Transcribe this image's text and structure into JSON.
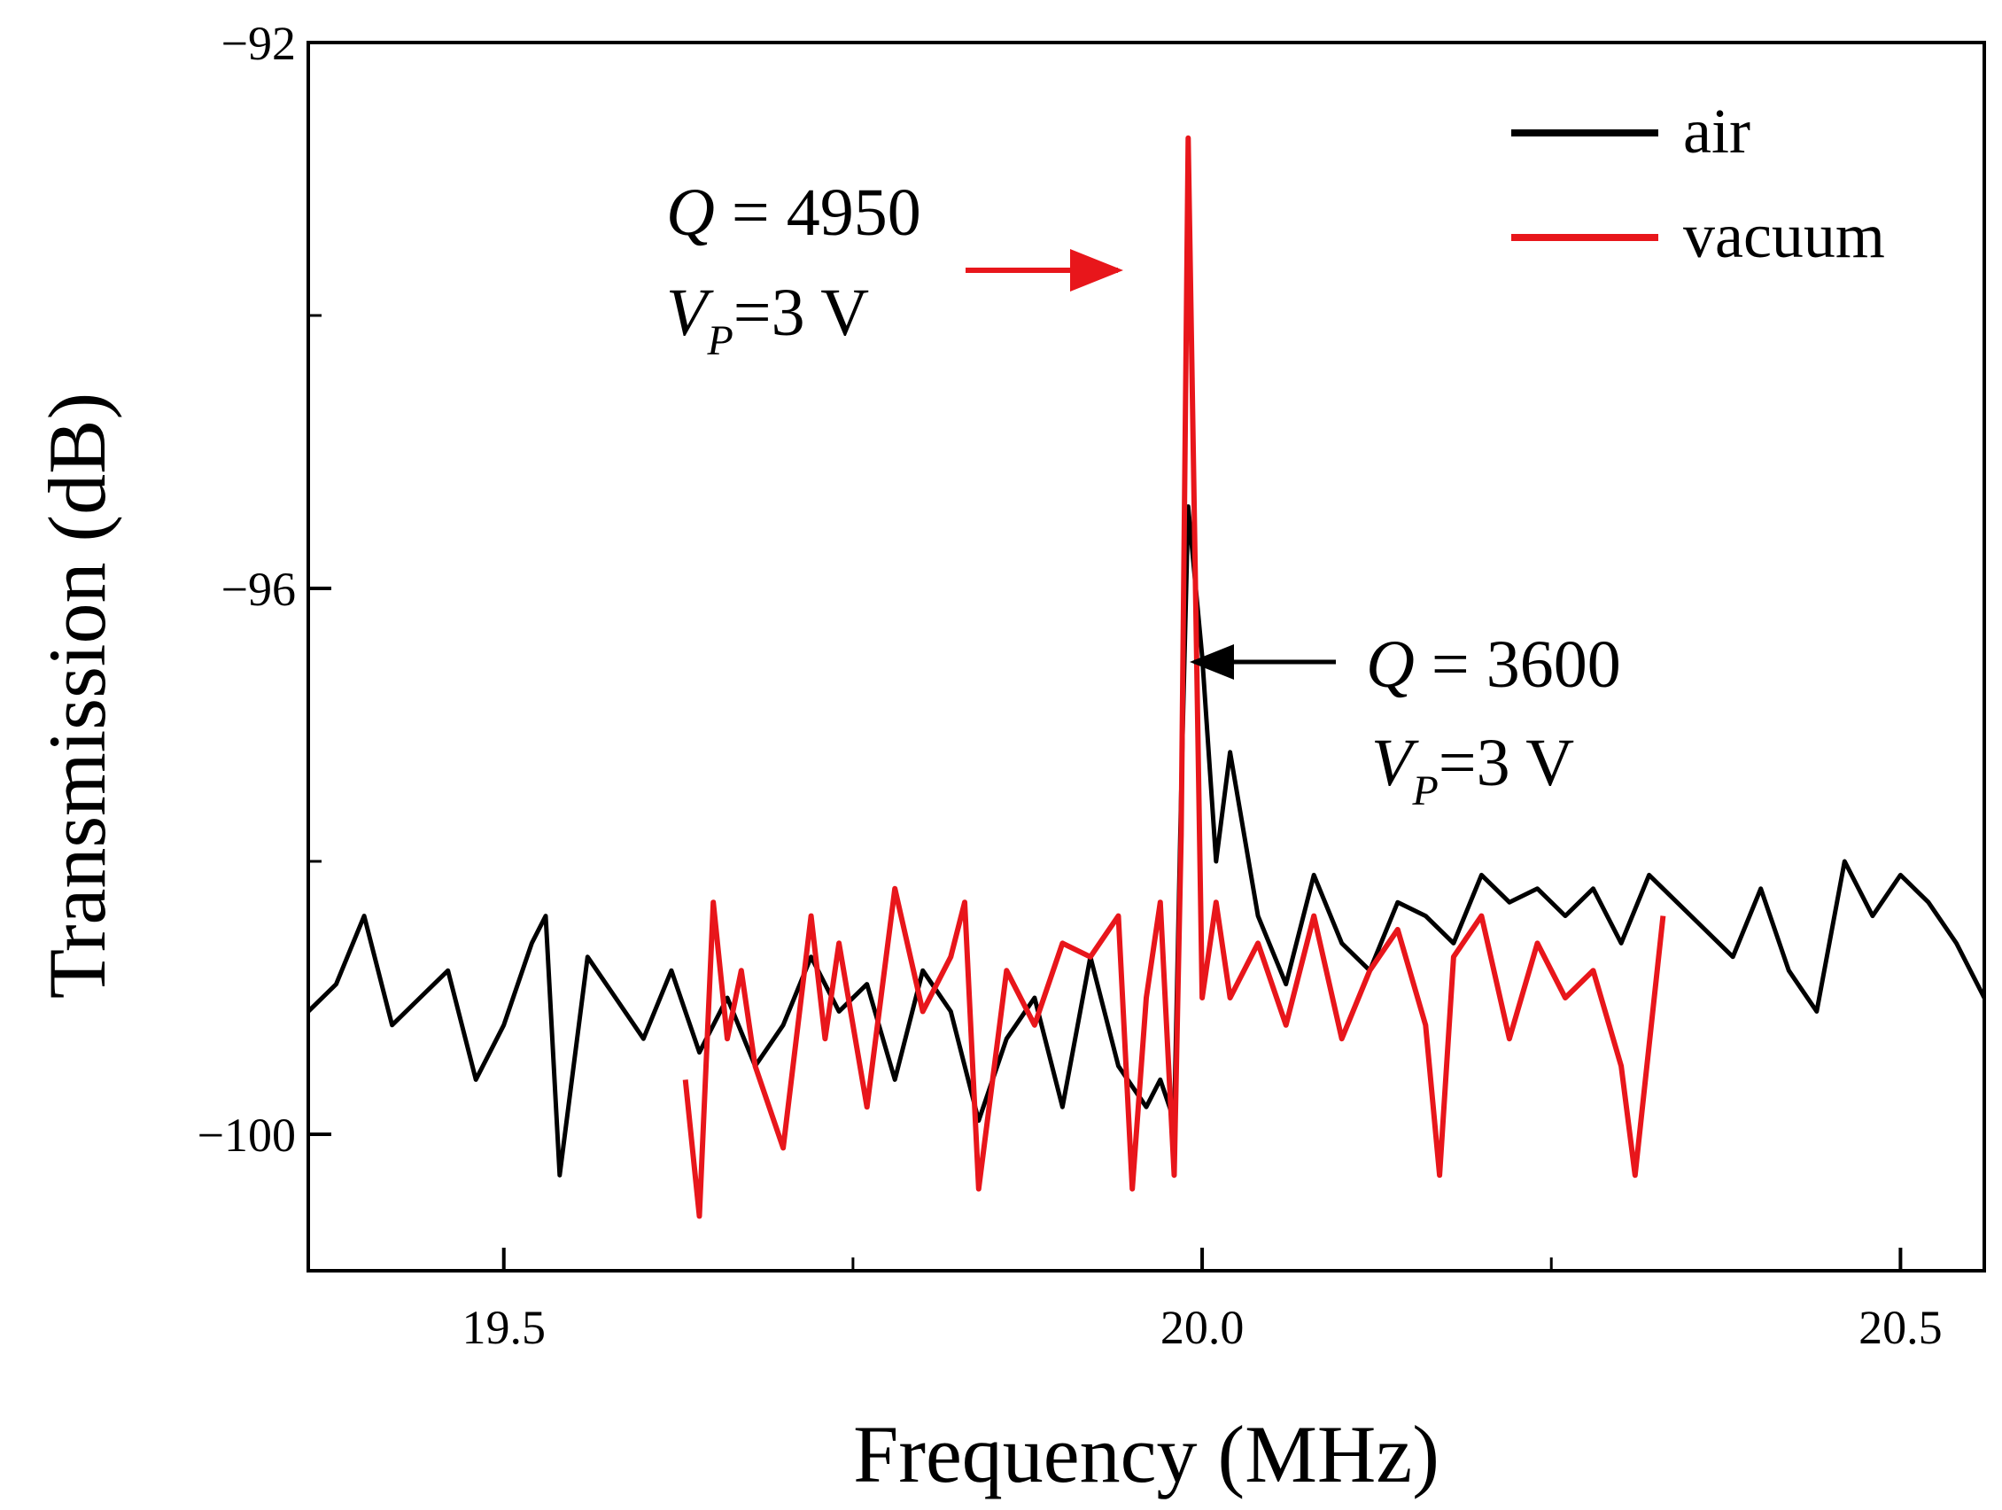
{
  "chart_data": {
    "type": "line",
    "xlabel": "Frequency (MHz)",
    "ylabel": "Transmission (dB)",
    "xlim": [
      19.36,
      20.56
    ],
    "ylim": [
      -101.0,
      -92.0
    ],
    "x_ticks": [
      {
        "value": 19.5,
        "label": "19.5"
      },
      {
        "value": 20.0,
        "label": "20.0"
      },
      {
        "value": 20.5,
        "label": "20.5"
      }
    ],
    "x_minor_ticks": [
      19.75,
      20.25
    ],
    "y_ticks": [
      {
        "value": -92,
        "label": "−92"
      },
      {
        "value": -96,
        "label": "−96"
      },
      {
        "value": -100,
        "label": "−100"
      }
    ],
    "y_minor_ticks": [
      -94,
      -98
    ],
    "legend": {
      "position": "top-right"
    },
    "series": [
      {
        "name": "air",
        "color": "#000000",
        "x": [
          19.36,
          19.38,
          19.4,
          19.42,
          19.44,
          19.46,
          19.48,
          19.5,
          19.52,
          19.53,
          19.54,
          19.56,
          19.58,
          19.6,
          19.62,
          19.64,
          19.66,
          19.68,
          19.7,
          19.72,
          19.74,
          19.76,
          19.78,
          19.8,
          19.82,
          19.84,
          19.86,
          19.88,
          19.9,
          19.92,
          19.94,
          19.96,
          19.97,
          19.98,
          19.985,
          19.99,
          20.0,
          20.01,
          20.02,
          20.04,
          20.06,
          20.08,
          20.1,
          20.12,
          20.14,
          20.16,
          20.18,
          20.2,
          20.22,
          20.24,
          20.26,
          20.28,
          20.3,
          20.32,
          20.34,
          20.36,
          20.38,
          20.4,
          20.42,
          20.44,
          20.46,
          20.48,
          20.5,
          20.52,
          20.54,
          20.56
        ],
        "y": [
          -99.1,
          -98.9,
          -98.4,
          -99.2,
          -99.0,
          -98.8,
          -99.6,
          -99.2,
          -98.6,
          -98.4,
          -100.3,
          -98.7,
          -99.0,
          -99.3,
          -98.8,
          -99.4,
          -99.0,
          -99.5,
          -99.2,
          -98.7,
          -99.1,
          -98.9,
          -99.6,
          -98.8,
          -99.1,
          -99.9,
          -99.3,
          -99.0,
          -99.8,
          -98.7,
          -99.5,
          -99.8,
          -99.6,
          -99.9,
          -97.5,
          -95.4,
          -96.5,
          -98.0,
          -97.2,
          -98.4,
          -98.9,
          -98.1,
          -98.6,
          -98.8,
          -98.3,
          -98.4,
          -98.6,
          -98.1,
          -98.3,
          -98.2,
          -98.4,
          -98.2,
          -98.6,
          -98.1,
          -98.3,
          -98.5,
          -98.7,
          -98.2,
          -98.8,
          -99.1,
          -98.0,
          -98.4,
          -98.1,
          -98.3,
          -98.6,
          -99.0
        ]
      },
      {
        "name": "vacuum",
        "color": "#e8161b",
        "x": [
          19.63,
          19.64,
          19.65,
          19.66,
          19.67,
          19.68,
          19.7,
          19.72,
          19.73,
          19.74,
          19.76,
          19.78,
          19.8,
          19.82,
          19.83,
          19.84,
          19.86,
          19.88,
          19.9,
          19.92,
          19.94,
          19.95,
          19.96,
          19.97,
          19.98,
          19.985,
          19.99,
          20.0,
          20.01,
          20.02,
          20.04,
          20.06,
          20.08,
          20.1,
          20.12,
          20.14,
          20.16,
          20.17,
          20.18,
          20.2,
          20.22,
          20.24,
          20.26,
          20.28,
          20.3,
          20.31,
          20.33
        ],
        "y": [
          -99.6,
          -100.6,
          -98.3,
          -99.3,
          -98.8,
          -99.5,
          -100.1,
          -98.4,
          -99.3,
          -98.6,
          -99.8,
          -98.2,
          -99.1,
          -98.7,
          -98.3,
          -100.4,
          -98.8,
          -99.2,
          -98.6,
          -98.7,
          -98.4,
          -100.4,
          -99.0,
          -98.3,
          -100.3,
          -97.8,
          -92.7,
          -99.0,
          -98.3,
          -99.0,
          -98.6,
          -99.2,
          -98.4,
          -99.3,
          -98.8,
          -98.5,
          -99.2,
          -100.3,
          -98.7,
          -98.4,
          -99.3,
          -98.6,
          -99.0,
          -98.8,
          -99.5,
          -100.3,
          -98.4
        ]
      }
    ],
    "annotations": [
      {
        "id": "vacuum-peak",
        "q_symbol": "Q",
        "q_text": " = 4950",
        "v_symbol": "V",
        "v_sub": "P",
        "v_text": "=3 V",
        "arrow_color": "#e8161b",
        "points_to_x": 19.985,
        "points_to_y": -92.9
      },
      {
        "id": "air-peak",
        "q_symbol": "Q",
        "q_text": " = 3600",
        "v_symbol": "V",
        "v_sub": "P",
        "v_text": "=3 V",
        "arrow_color": "#000000",
        "points_to_x": 20.05,
        "points_to_y": -96.9
      }
    ]
  }
}
